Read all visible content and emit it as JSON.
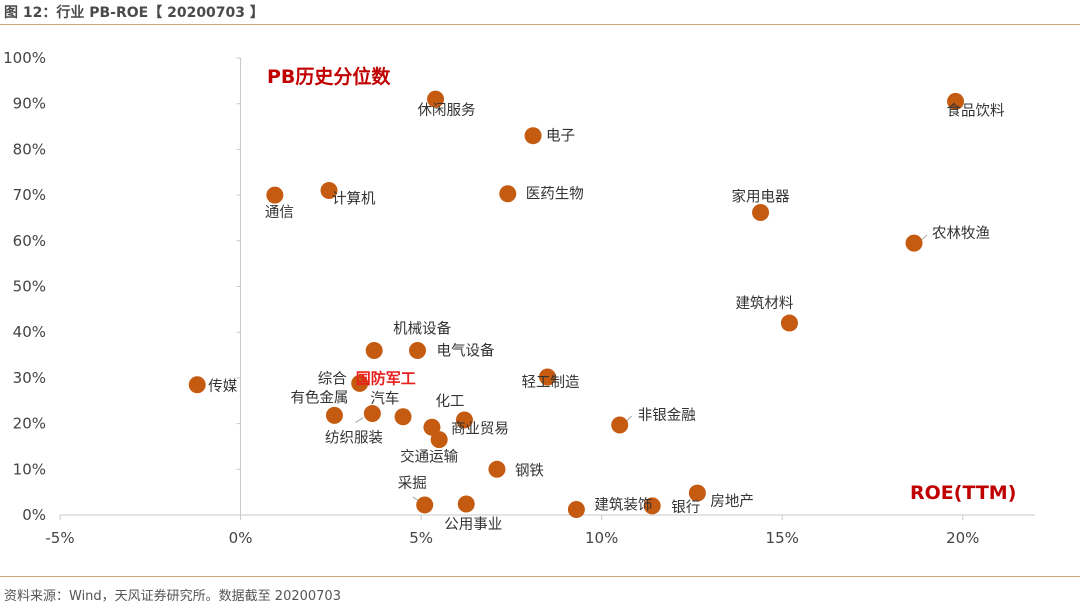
{
  "figure_title": "图 12：行业 PB-ROE【 20200703 】",
  "source_note": "资料来源：Wind，天风证券研究所。数据截至 20200703",
  "colors": {
    "dot": "#c55a11",
    "highlight": "#e8201e",
    "annotation": "#c00000",
    "rule": "#c9a77c"
  },
  "chart_data": {
    "type": "scatter",
    "title": "",
    "xlabel": "ROE(TTM)",
    "ylabel": "PB历史分位数",
    "xlim": [
      -0.05,
      0.22
    ],
    "ylim": [
      0,
      1.0
    ],
    "x_ticks": [
      -0.05,
      0,
      0.05,
      0.1,
      0.15,
      0.2
    ],
    "x_tick_labels": [
      "-5%",
      "0%",
      "5%",
      "10%",
      "15%",
      "20%"
    ],
    "y_ticks": [
      0,
      0.1,
      0.2,
      0.3,
      0.4,
      0.5,
      0.6,
      0.7,
      0.8,
      0.9,
      1.0
    ],
    "y_tick_labels": [
      "0%",
      "10%",
      "20%",
      "30%",
      "40%",
      "50%",
      "60%",
      "70%",
      "80%",
      "90%",
      "100%"
    ],
    "points": [
      {
        "name": "休闲服务",
        "x": 0.054,
        "y": 0.91
      },
      {
        "name": "电子",
        "x": 0.081,
        "y": 0.83
      },
      {
        "name": "食品饮料",
        "x": 0.198,
        "y": 0.905
      },
      {
        "name": "通信",
        "x": 0.0095,
        "y": 0.7
      },
      {
        "name": "计算机",
        "x": 0.0245,
        "y": 0.71
      },
      {
        "name": "医药生物",
        "x": 0.074,
        "y": 0.703
      },
      {
        "name": "家用电器",
        "x": 0.144,
        "y": 0.662
      },
      {
        "name": "农林牧渔",
        "x": 0.1865,
        "y": 0.595
      },
      {
        "name": "建筑材料",
        "x": 0.152,
        "y": 0.42
      },
      {
        "name": "机械设备",
        "x": 0.037,
        "y": 0.36
      },
      {
        "name": "电气设备",
        "x": 0.049,
        "y": 0.36
      },
      {
        "name": "传媒",
        "x": -0.012,
        "y": 0.285
      },
      {
        "name": "国防军工",
        "x": 0.033,
        "y": 0.288,
        "highlight": true
      },
      {
        "name": "综合",
        "x": 0.033,
        "y": 0.288
      },
      {
        "name": "轻工制造",
        "x": 0.085,
        "y": 0.302
      },
      {
        "name": "有色金属",
        "x": 0.026,
        "y": 0.218
      },
      {
        "name": "汽车",
        "x": 0.0365,
        "y": 0.222
      },
      {
        "name": "纺织服装",
        "x": 0.045,
        "y": 0.215
      },
      {
        "name": "化工",
        "x": 0.062,
        "y": 0.208
      },
      {
        "name": "商业贸易",
        "x": 0.053,
        "y": 0.192
      },
      {
        "name": "交通运输",
        "x": 0.055,
        "y": 0.165
      },
      {
        "name": "非银金融",
        "x": 0.105,
        "y": 0.197
      },
      {
        "name": "钢铁",
        "x": 0.071,
        "y": 0.1
      },
      {
        "name": "采掘",
        "x": 0.051,
        "y": 0.022
      },
      {
        "name": "公用事业",
        "x": 0.0625,
        "y": 0.024
      },
      {
        "name": "建筑装饰",
        "x": 0.093,
        "y": 0.012
      },
      {
        "name": "银行",
        "x": 0.114,
        "y": 0.02
      },
      {
        "name": "房地产",
        "x": 0.1265,
        "y": 0.048
      }
    ]
  }
}
